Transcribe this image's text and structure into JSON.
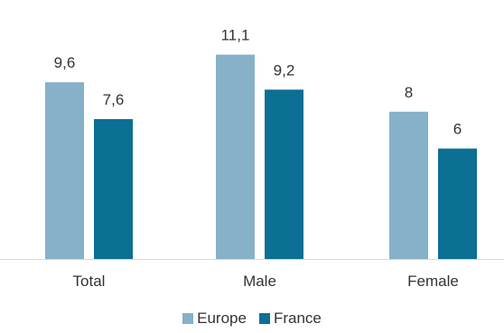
{
  "chart_data": {
    "type": "bar",
    "categories": [
      "Total",
      "Male",
      "Female"
    ],
    "series": [
      {
        "name": "Europe",
        "values": [
          9.6,
          11.1,
          8
        ],
        "labels": [
          "9,6",
          "11,1",
          "8"
        ],
        "color": "#87b0c9"
      },
      {
        "name": "France",
        "values": [
          7.6,
          9.2,
          6
        ],
        "labels": [
          "7,6",
          "9,2",
          "6"
        ],
        "color": "#0b7093"
      }
    ],
    "ylim": [
      0,
      12
    ],
    "grid": false,
    "legend": "bottom-center"
  }
}
